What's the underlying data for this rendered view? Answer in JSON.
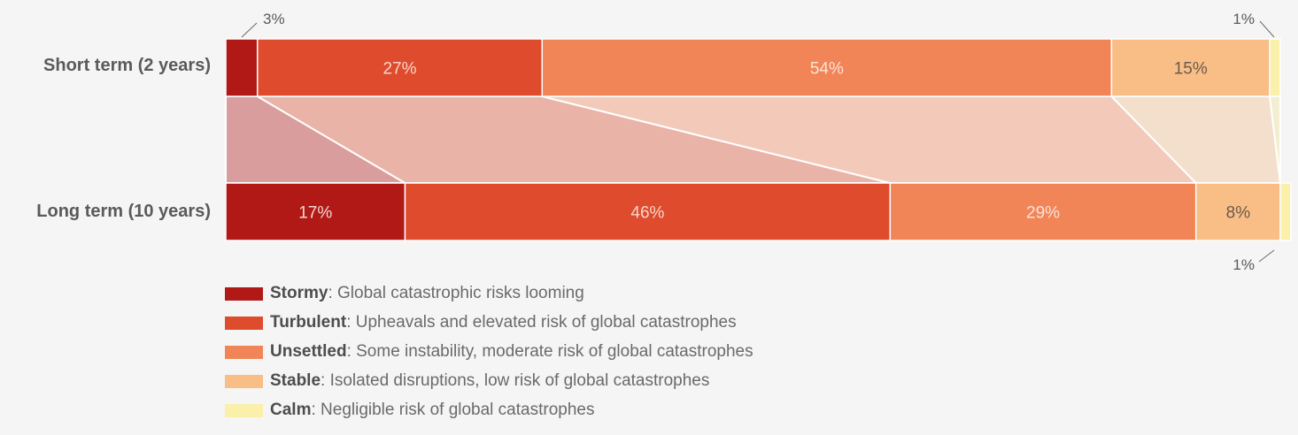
{
  "chart_data": {
    "type": "bar",
    "subtype": "stacked-horizontal-100",
    "categories": [
      "Short term (2 years)",
      "Long term (10 years)"
    ],
    "series": [
      {
        "name": "Stormy",
        "values": [
          3,
          17
        ],
        "color": "#b11917",
        "label_color": "#f3d8d0"
      },
      {
        "name": "Turbulent",
        "values": [
          27,
          46
        ],
        "color": "#df4b2d",
        "label_color": "#f7d6cb"
      },
      {
        "name": "Unsettled",
        "values": [
          54,
          29
        ],
        "color": "#f18558",
        "label_color": "#fce3d6"
      },
      {
        "name": "Stable",
        "values": [
          15,
          8
        ],
        "color": "#f8be86",
        "label_color": "#6b5a4c"
      },
      {
        "name": "Calm",
        "values": [
          1,
          1
        ],
        "color": "#fbf0a9",
        "label_color": "#6b5a4c"
      }
    ],
    "value_labels": [
      [
        "3%",
        "27%",
        "54%",
        "15%",
        "1%"
      ],
      [
        "17%",
        "46%",
        "29%",
        "8%",
        "1%"
      ]
    ],
    "band_colors": [
      "#d89d9c",
      "#eab3a7",
      "#f3cab9",
      "#f3dfcc"
    ],
    "xlim": [
      0,
      100
    ]
  },
  "legend": [
    {
      "name": "Stormy",
      "description": ": Global catastrophic risks looming",
      "color": "#b11917"
    },
    {
      "name": "Turbulent",
      "description": ": Upheavals and elevated risk of global catastrophes",
      "color": "#df4b2d"
    },
    {
      "name": "Unsettled",
      "description": ": Some instability, moderate risk of global catastrophes",
      "color": "#f18558"
    },
    {
      "name": "Stable",
      "description": ": Isolated disruptions, low risk of global catastrophes",
      "color": "#f8be86"
    },
    {
      "name": "Calm",
      "description": ": Negligible risk of global catastrophes",
      "color": "#fbf0a9"
    }
  ]
}
